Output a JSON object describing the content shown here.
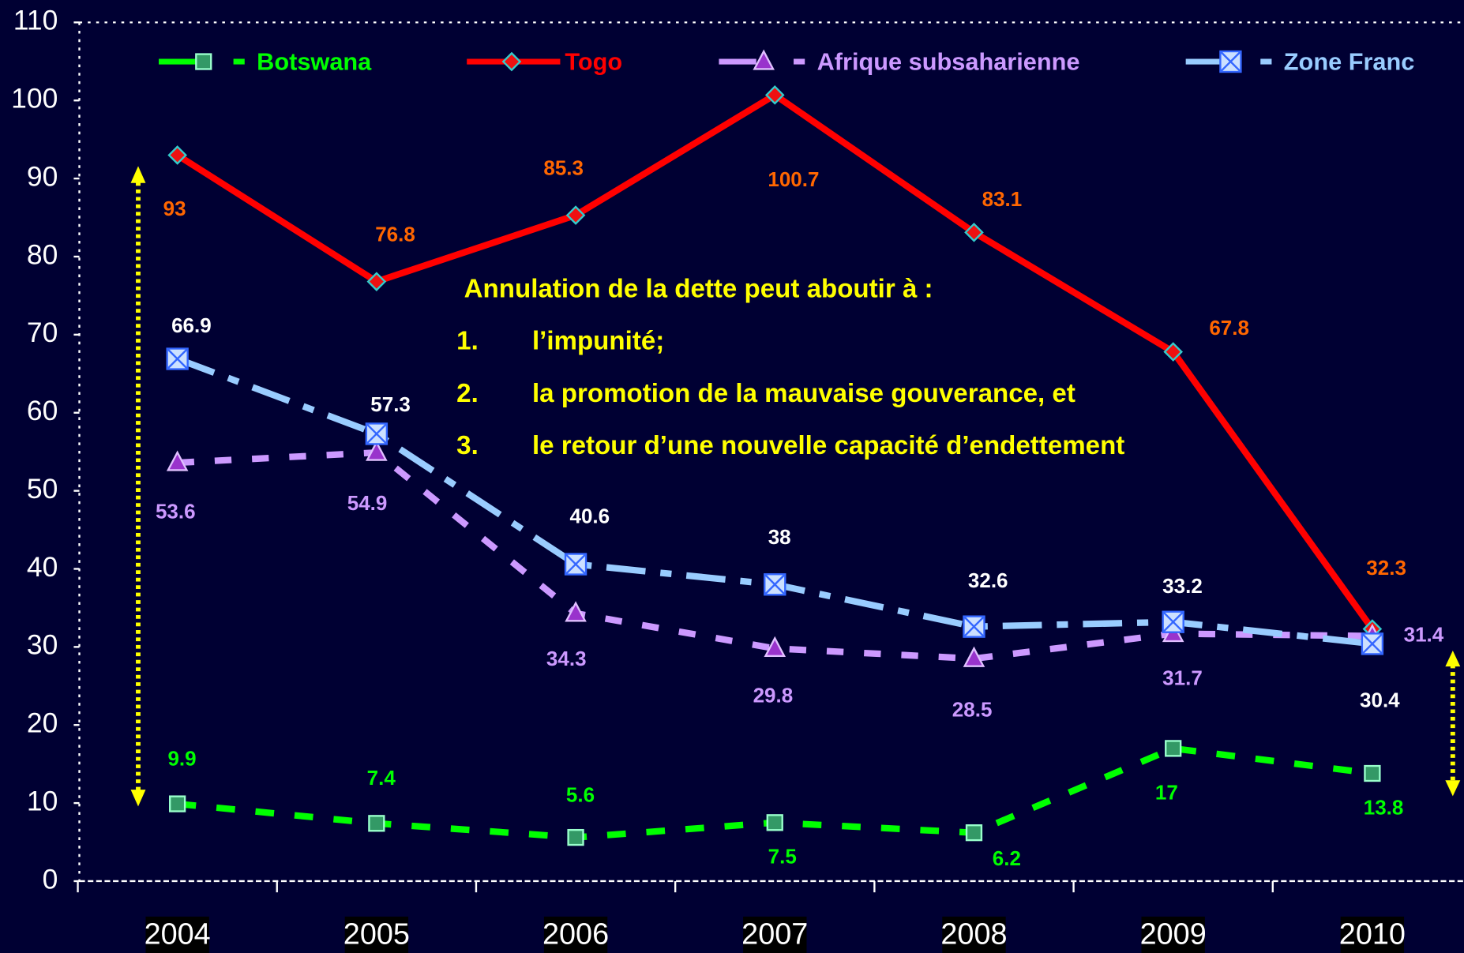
{
  "chart_data": {
    "type": "line",
    "categories": [
      "2004",
      "2005",
      "2006",
      "2007",
      "2008",
      "2009",
      "2010"
    ],
    "series": [
      {
        "name": "Botswana",
        "color": "#00ff00",
        "values": [
          9.9,
          7.4,
          5.6,
          7.5,
          6.2,
          17,
          13.8
        ]
      },
      {
        "name": "Togo",
        "color": "#ff0000",
        "values": [
          93,
          76.8,
          85.3,
          100.7,
          83.1,
          67.8,
          32.3
        ]
      },
      {
        "name": "Afrique subsaharienne",
        "color": "#cc99ff",
        "values": [
          53.6,
          54.9,
          34.3,
          29.8,
          28.5,
          31.7,
          31.4
        ]
      },
      {
        "name": "Zone Franc",
        "color": "#99ccff",
        "values": [
          66.9,
          57.3,
          40.6,
          38,
          32.6,
          33.2,
          30.4
        ]
      }
    ],
    "ylim": [
      0,
      110
    ],
    "yticks": [
      0,
      10,
      20,
      30,
      40,
      50,
      60,
      70,
      80,
      90,
      100,
      110
    ],
    "legend": "top",
    "annotation": {
      "title": "Annulation de la dette peut aboutir à :",
      "items": [
        {
          "number": "1.",
          "text": "l’impunité;"
        },
        {
          "number": "2.",
          "text": "la promotion de la mauvaise gouverance, et"
        },
        {
          "number": "3.",
          "text": "le retour d’une nouvelle capacité d’endettement"
        }
      ]
    }
  }
}
